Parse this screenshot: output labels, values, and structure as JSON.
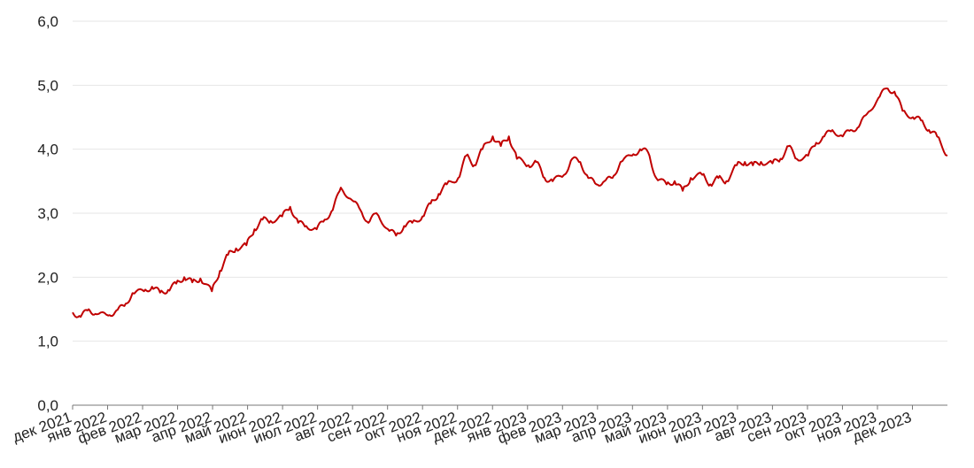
{
  "chart_data": {
    "type": "line",
    "title": "",
    "xlabel": "",
    "ylabel": "",
    "ylim": [
      0,
      6
    ],
    "yticks": [
      "0,0",
      "1,0",
      "2,0",
      "3,0",
      "4,0",
      "5,0",
      "6,0"
    ],
    "grid": true,
    "x_tick_labels": [
      "дек 2021",
      "янв 2022",
      "фев 2022",
      "мар 2022",
      "апр 2022",
      "май 2022",
      "июн 2022",
      "июл 2022",
      "авг 2022",
      "сен 2022",
      "окт 2022",
      "ноя 2022",
      "дек 2022",
      "янв 2023",
      "фев 2023",
      "мар 2023",
      "апр 2023",
      "май 2023",
      "июн 2023",
      "июл 2023",
      "авг 2023",
      "сен 2023",
      "окт 2023",
      "ноя 2023",
      "дек 2023"
    ],
    "line_color": "#c00000",
    "series": [
      {
        "x": [
          "2021-12-01",
          "2021-12-08",
          "2021-12-15",
          "2021-12-22",
          "2022-01-01",
          "2022-01-08",
          "2022-01-15",
          "2022-01-22",
          "2022-02-01",
          "2022-02-08",
          "2022-02-15",
          "2022-02-22",
          "2022-03-01",
          "2022-03-08",
          "2022-03-15",
          "2022-03-22",
          "2022-04-01",
          "2022-04-08",
          "2022-04-15",
          "2022-04-22",
          "2022-05-01",
          "2022-05-08",
          "2022-05-15",
          "2022-05-22",
          "2022-06-01",
          "2022-06-08",
          "2022-06-15",
          "2022-06-22",
          "2022-07-01",
          "2022-07-08",
          "2022-07-15",
          "2022-07-22",
          "2022-08-01",
          "2022-08-08",
          "2022-08-15",
          "2022-08-22",
          "2022-09-01",
          "2022-09-08",
          "2022-09-15",
          "2022-09-22",
          "2022-10-01",
          "2022-10-08",
          "2022-10-15",
          "2022-10-22",
          "2022-11-01",
          "2022-11-08",
          "2022-11-15",
          "2022-11-22",
          "2022-12-01",
          "2022-12-08",
          "2022-12-15",
          "2022-12-22",
          "2023-01-01",
          "2023-01-08",
          "2023-01-15",
          "2023-01-22",
          "2023-02-01",
          "2023-02-08",
          "2023-02-15",
          "2023-02-22",
          "2023-03-01",
          "2023-03-08",
          "2023-03-15",
          "2023-03-22",
          "2023-04-01",
          "2023-04-08",
          "2023-04-15",
          "2023-04-22",
          "2023-05-01",
          "2023-05-08",
          "2023-05-15",
          "2023-05-22",
          "2023-06-01",
          "2023-06-08",
          "2023-06-15",
          "2023-06-22",
          "2023-07-01",
          "2023-07-08",
          "2023-07-15",
          "2023-07-22",
          "2023-08-01",
          "2023-08-08",
          "2023-08-15",
          "2023-08-22",
          "2023-09-01",
          "2023-09-08",
          "2023-09-15",
          "2023-09-22",
          "2023-10-01",
          "2023-10-08",
          "2023-10-15",
          "2023-10-22",
          "2023-11-01",
          "2023-11-08",
          "2023-11-15",
          "2023-11-22",
          "2023-12-01",
          "2023-12-08",
          "2023-12-15",
          "2023-12-22",
          "2023-12-31"
        ],
        "values": [
          1.45,
          1.38,
          1.5,
          1.42,
          1.4,
          1.48,
          1.55,
          1.75,
          1.78,
          1.85,
          1.76,
          1.8,
          1.9,
          2.0,
          1.92,
          1.98,
          1.78,
          2.1,
          2.35,
          2.45,
          2.5,
          2.75,
          2.9,
          2.88,
          2.95,
          3.1,
          2.85,
          2.8,
          2.75,
          2.9,
          3.05,
          3.4,
          3.2,
          3.05,
          2.85,
          3.0,
          2.75,
          2.65,
          2.8,
          2.85,
          2.95,
          3.15,
          3.3,
          3.45,
          3.55,
          3.9,
          3.75,
          4.0,
          4.2,
          4.05,
          4.2,
          3.85,
          3.75,
          3.8,
          3.55,
          3.5,
          3.6,
          3.85,
          3.8,
          3.55,
          3.45,
          3.5,
          3.55,
          3.8,
          3.9,
          4.0,
          3.95,
          3.55,
          3.45,
          3.5,
          3.35,
          3.55,
          3.6,
          3.45,
          3.55,
          3.5,
          3.75,
          3.8,
          3.75,
          3.8,
          3.78,
          3.85,
          4.05,
          3.85,
          3.9,
          4.1,
          4.2,
          4.3,
          4.2,
          4.3,
          4.35,
          4.55,
          4.8,
          4.95,
          4.9,
          4.6,
          4.5,
          4.45,
          4.3,
          4.2,
          3.9
        ]
      }
    ]
  }
}
